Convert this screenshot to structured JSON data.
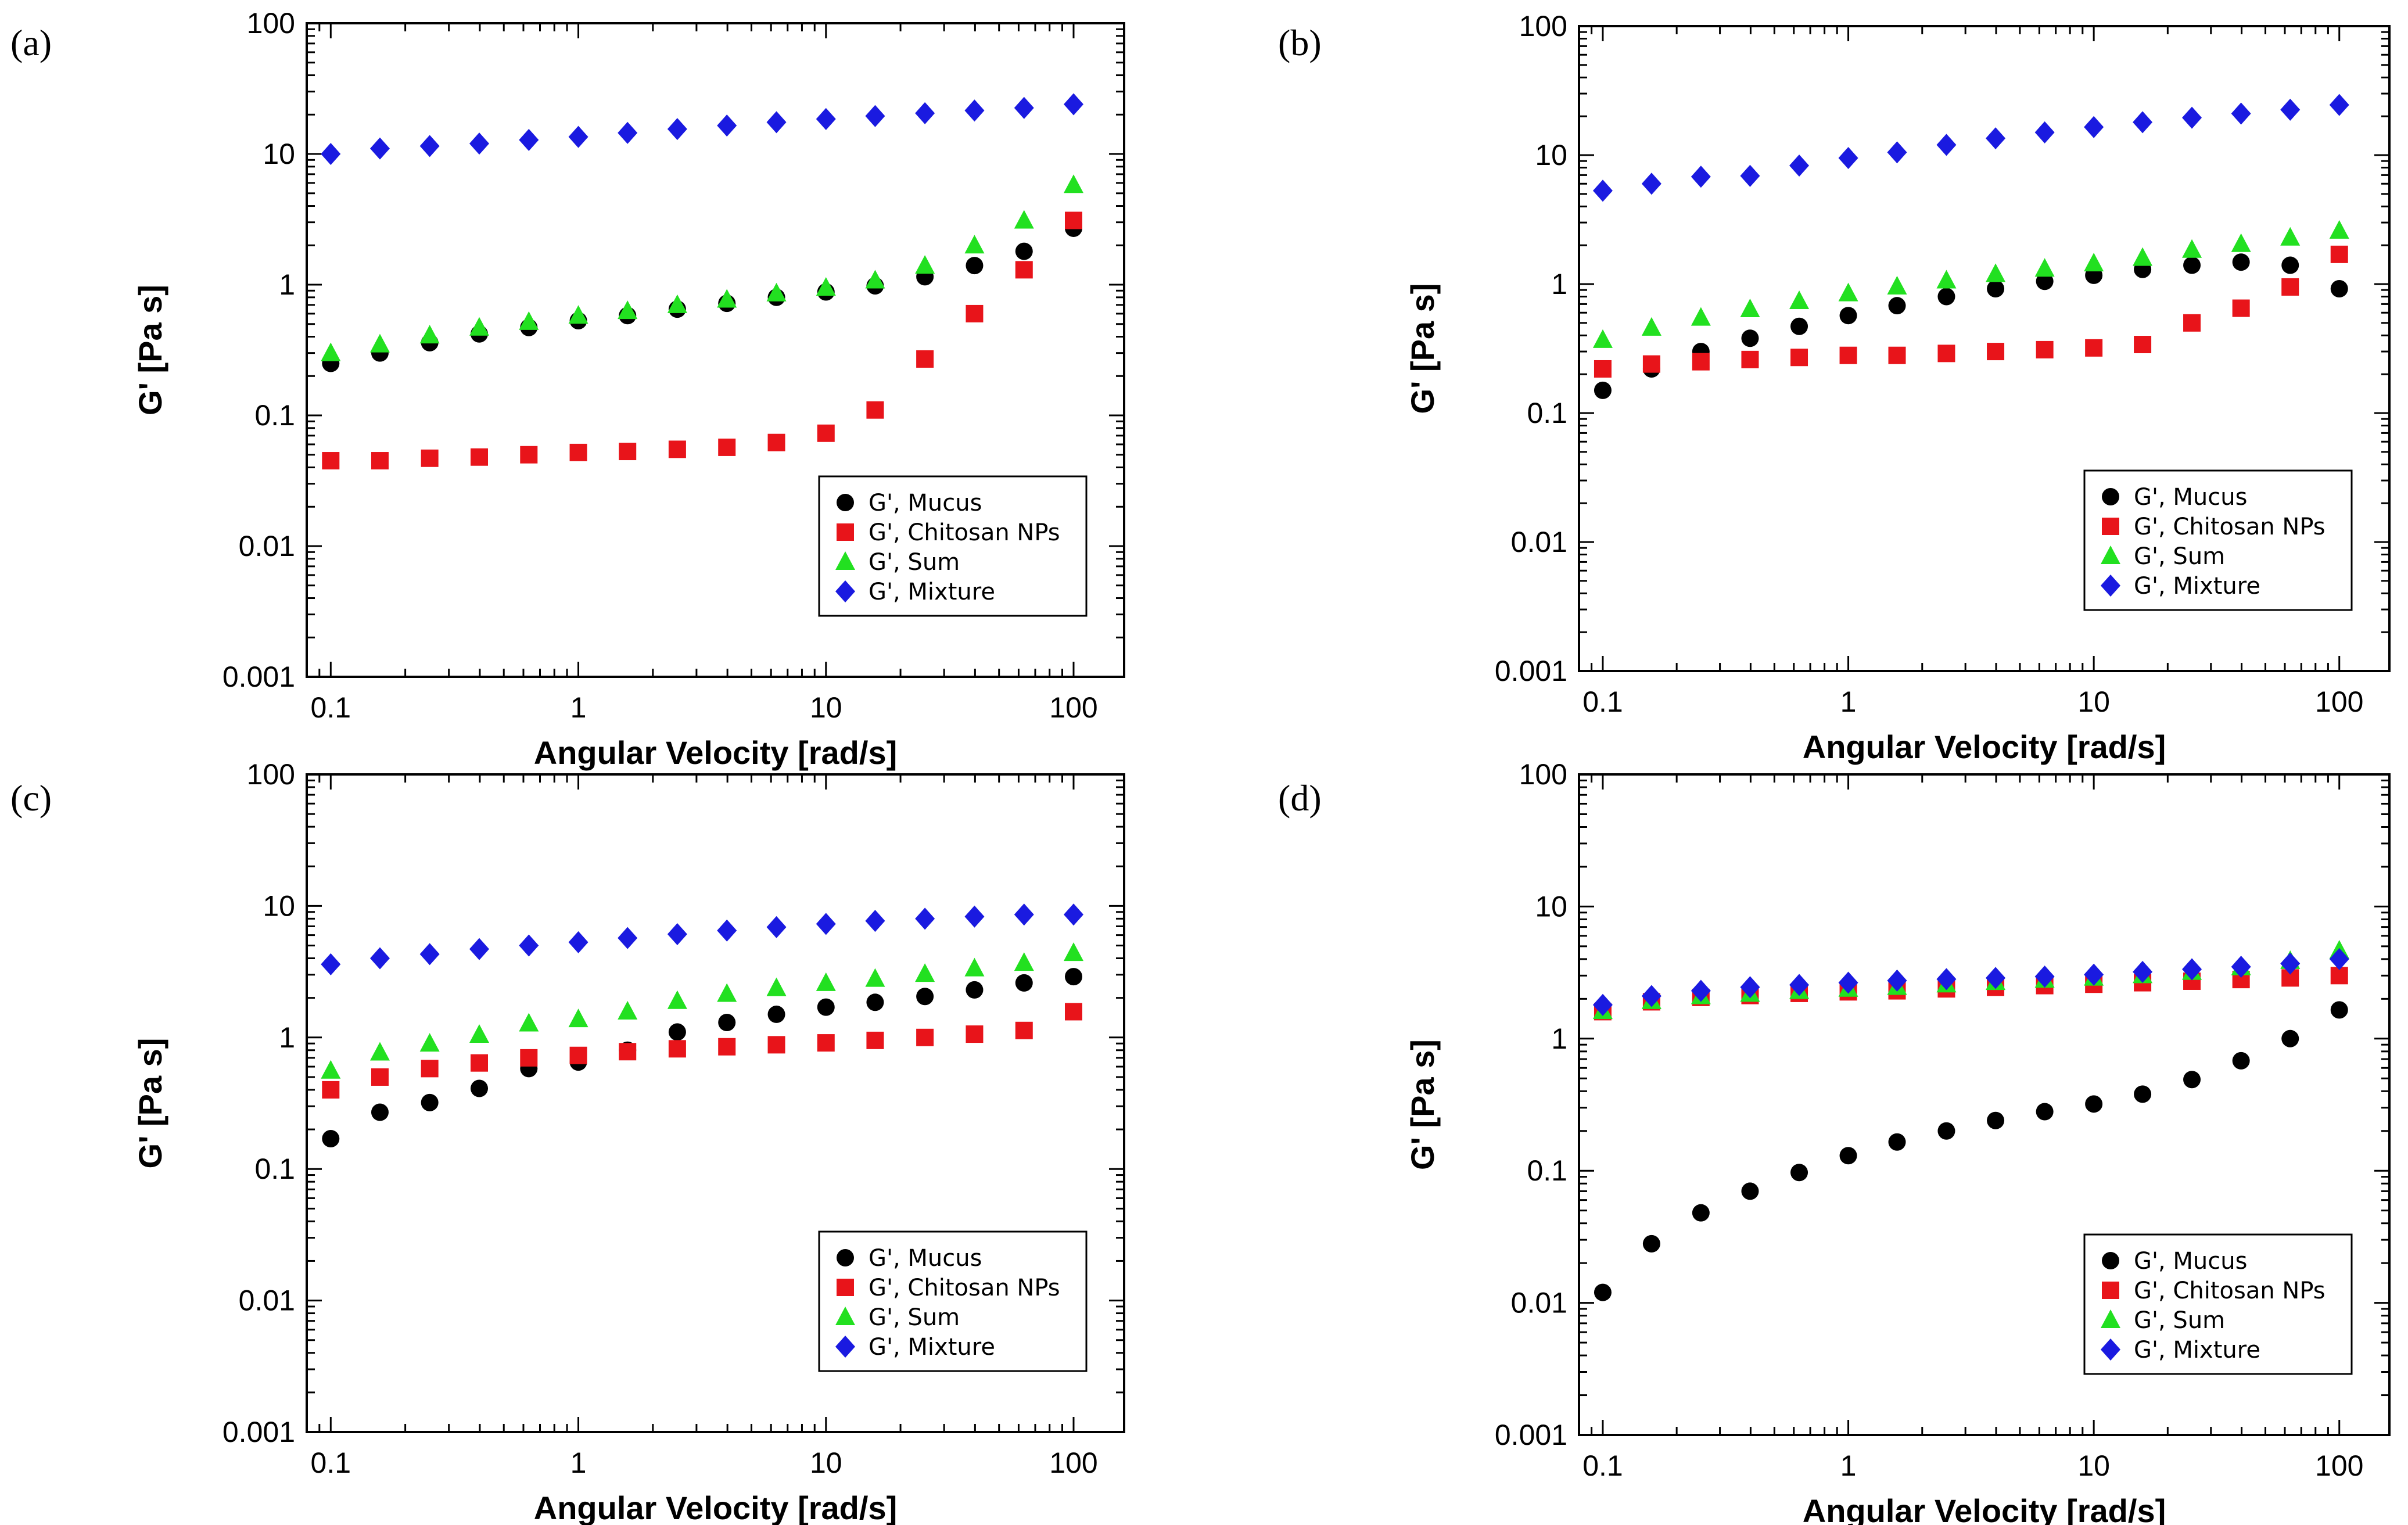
{
  "chart_data": [
    {
      "panel": "(a)",
      "type": "scatter",
      "xlabel": "Angular Velocity [rad/s]",
      "ylabel": "G' [Pa s]",
      "xscale": "log",
      "yscale": "log",
      "xlim": [
        0.08,
        160
      ],
      "ylim": [
        0.001,
        100
      ],
      "x_ticks": [
        0.1,
        1,
        10,
        100
      ],
      "x_tick_labels": [
        "0.1",
        "1",
        "10",
        "100"
      ],
      "y_ticks": [
        0.001,
        0.01,
        0.1,
        1,
        10,
        100
      ],
      "y_tick_labels": [
        "0.001",
        "0.01",
        "0.1",
        "1",
        "10",
        "100"
      ],
      "legend_position": "bottom-right",
      "x": [
        0.1,
        0.158,
        0.251,
        0.398,
        0.631,
        1,
        1.58,
        2.51,
        3.98,
        6.31,
        10,
        15.8,
        25.1,
        39.8,
        63.1,
        100
      ],
      "series": [
        {
          "name": "G', Mucus",
          "marker": "circle",
          "color": "#000000",
          "values": [
            0.25,
            0.3,
            0.36,
            0.42,
            0.47,
            0.53,
            0.58,
            0.65,
            0.72,
            0.8,
            0.88,
            0.98,
            1.15,
            1.4,
            1.8,
            2.7
          ]
        },
        {
          "name": "G', Chitosan NPs",
          "marker": "square",
          "color": "#e8141a",
          "values": [
            0.045,
            0.045,
            0.047,
            0.048,
            0.05,
            0.052,
            0.053,
            0.055,
            0.057,
            0.062,
            0.073,
            0.11,
            0.27,
            0.6,
            1.3,
            3.1
          ]
        },
        {
          "name": "G', Sum",
          "marker": "triangle",
          "color": "#22e020",
          "values": [
            0.3,
            0.35,
            0.41,
            0.47,
            0.52,
            0.58,
            0.63,
            0.7,
            0.77,
            0.86,
            0.95,
            1.08,
            1.4,
            2.0,
            3.1,
            5.8
          ]
        },
        {
          "name": "G', Mixture",
          "marker": "diamond",
          "color": "#1a1ae0",
          "values": [
            10,
            11,
            11.5,
            12,
            12.8,
            13.5,
            14.5,
            15.5,
            16.5,
            17.5,
            18.5,
            19.5,
            20.5,
            21.5,
            22.5,
            24
          ]
        }
      ]
    },
    {
      "panel": "(b)",
      "type": "scatter",
      "xlabel": "Angular Velocity [rad/s]",
      "ylabel": "G' [Pa s]",
      "xscale": "log",
      "yscale": "log",
      "xlim": [
        0.08,
        160
      ],
      "ylim": [
        0.001,
        100
      ],
      "x_ticks": [
        0.1,
        1,
        10,
        100
      ],
      "x_tick_labels": [
        "0.1",
        "1",
        "10",
        "100"
      ],
      "y_ticks": [
        0.001,
        0.01,
        0.1,
        1,
        10,
        100
      ],
      "y_tick_labels": [
        "0.001",
        "0.01",
        "0.1",
        "1",
        "10",
        "100"
      ],
      "legend_position": "bottom-right",
      "x": [
        0.1,
        0.158,
        0.251,
        0.398,
        0.631,
        1,
        1.58,
        2.51,
        3.98,
        6.31,
        10,
        15.8,
        25.1,
        39.8,
        63.1,
        100
      ],
      "series": [
        {
          "name": "G', Mucus",
          "marker": "circle",
          "color": "#000000",
          "values": [
            0.15,
            0.22,
            0.3,
            0.38,
            0.47,
            0.57,
            0.68,
            0.8,
            0.92,
            1.05,
            1.17,
            1.3,
            1.4,
            1.48,
            1.4,
            0.92
          ]
        },
        {
          "name": "G', Chitosan NPs",
          "marker": "square",
          "color": "#e8141a",
          "values": [
            0.22,
            0.24,
            0.25,
            0.26,
            0.27,
            0.28,
            0.28,
            0.29,
            0.3,
            0.31,
            0.32,
            0.34,
            0.5,
            0.65,
            0.95,
            1.7
          ]
        },
        {
          "name": "G', Sum",
          "marker": "triangle",
          "color": "#22e020",
          "values": [
            0.37,
            0.46,
            0.55,
            0.64,
            0.74,
            0.85,
            0.96,
            1.07,
            1.2,
            1.32,
            1.45,
            1.6,
            1.85,
            2.05,
            2.3,
            2.6
          ]
        },
        {
          "name": "G', Mixture",
          "marker": "diamond",
          "color": "#1a1ae0",
          "values": [
            5.3,
            6,
            6.8,
            6.9,
            8.3,
            9.5,
            10.5,
            12,
            13.5,
            15,
            16.5,
            18,
            19.5,
            21,
            22.5,
            24.5
          ]
        }
      ]
    },
    {
      "panel": "(c)",
      "type": "scatter",
      "xlabel": "Angular Velocity [rad/s]",
      "ylabel": "G' [Pa s]",
      "xscale": "log",
      "yscale": "log",
      "xlim": [
        0.08,
        160
      ],
      "ylim": [
        0.001,
        100
      ],
      "x_ticks": [
        0.1,
        1,
        10,
        100
      ],
      "x_tick_labels": [
        "0.1",
        "1",
        "10",
        "100"
      ],
      "y_ticks": [
        0.001,
        0.01,
        0.1,
        1,
        10,
        100
      ],
      "y_tick_labels": [
        "0.001",
        "0.01",
        "0.1",
        "1",
        "10",
        "100"
      ],
      "legend_position": "bottom-right",
      "x": [
        0.1,
        0.158,
        0.251,
        0.398,
        0.631,
        1,
        1.58,
        2.51,
        3.98,
        6.31,
        10,
        15.8,
        25.1,
        39.8,
        63.1,
        100
      ],
      "series": [
        {
          "name": "G', Mucus",
          "marker": "circle",
          "color": "#000000",
          "values": [
            0.17,
            0.27,
            0.32,
            0.41,
            0.58,
            0.65,
            0.8,
            1.1,
            1.3,
            1.5,
            1.7,
            1.85,
            2.05,
            2.3,
            2.6,
            2.9
          ]
        },
        {
          "name": "G', Chitosan NPs",
          "marker": "square",
          "color": "#e8141a",
          "values": [
            0.4,
            0.5,
            0.58,
            0.64,
            0.7,
            0.73,
            0.78,
            0.82,
            0.85,
            0.88,
            0.91,
            0.95,
            1.0,
            1.06,
            1.13,
            1.57
          ]
        },
        {
          "name": "G', Sum",
          "marker": "triangle",
          "color": "#22e020",
          "values": [
            0.56,
            0.77,
            0.9,
            1.05,
            1.28,
            1.38,
            1.58,
            1.9,
            2.15,
            2.38,
            2.6,
            2.8,
            3.05,
            3.36,
            3.7,
            4.4
          ]
        },
        {
          "name": "G', Mixture",
          "marker": "diamond",
          "color": "#1a1ae0",
          "values": [
            3.6,
            4,
            4.3,
            4.7,
            5,
            5.3,
            5.7,
            6.1,
            6.5,
            6.9,
            7.3,
            7.7,
            8,
            8.3,
            8.6,
            8.6
          ]
        }
      ]
    },
    {
      "panel": "(d)",
      "type": "scatter",
      "xlabel": "Angular Velocity [rad/s]",
      "ylabel": "G' [Pa s]",
      "xscale": "log",
      "yscale": "log",
      "xlim": [
        0.08,
        160
      ],
      "ylim": [
        0.001,
        100
      ],
      "x_ticks": [
        0.1,
        1,
        10,
        100
      ],
      "x_tick_labels": [
        "0.1",
        "1",
        "10",
        "100"
      ],
      "y_ticks": [
        0.001,
        0.01,
        0.1,
        1,
        10,
        100
      ],
      "y_tick_labels": [
        "0.001",
        "0.01",
        "0.1",
        "1",
        "10",
        "100"
      ],
      "legend_position": "bottom-right",
      "x": [
        0.1,
        0.158,
        0.251,
        0.398,
        0.631,
        1,
        1.58,
        2.51,
        3.98,
        6.31,
        10,
        15.8,
        25.1,
        39.8,
        63.1,
        100
      ],
      "series": [
        {
          "name": "G', Mucus",
          "marker": "circle",
          "color": "#000000",
          "values": [
            0.012,
            0.028,
            0.048,
            0.07,
            0.097,
            0.13,
            0.165,
            0.2,
            0.24,
            0.28,
            0.32,
            0.38,
            0.49,
            0.68,
            1.0,
            1.65
          ]
        },
        {
          "name": "G', Chitosan NPs",
          "marker": "square",
          "color": "#e8141a",
          "values": [
            1.6,
            1.9,
            2.05,
            2.12,
            2.2,
            2.26,
            2.3,
            2.38,
            2.45,
            2.52,
            2.58,
            2.65,
            2.72,
            2.8,
            2.88,
            3.0
          ]
        },
        {
          "name": "G', Sum",
          "marker": "triangle",
          "color": "#22e020",
          "values": [
            1.62,
            1.93,
            2.1,
            2.19,
            2.3,
            2.39,
            2.47,
            2.58,
            2.69,
            2.8,
            2.9,
            3.03,
            3.21,
            3.48,
            3.88,
            4.65
          ]
        },
        {
          "name": "G', Mixture",
          "marker": "diamond",
          "color": "#1a1ae0",
          "values": [
            1.8,
            2.1,
            2.3,
            2.45,
            2.55,
            2.65,
            2.75,
            2.82,
            2.88,
            2.95,
            3.05,
            3.2,
            3.35,
            3.5,
            3.7,
            4.0
          ]
        }
      ]
    }
  ]
}
